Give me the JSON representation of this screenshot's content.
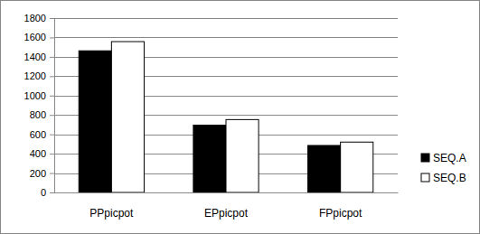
{
  "chart_data": {
    "type": "bar",
    "categories": [
      "PPpicpot",
      "EPpicpot",
      "FPpicpot"
    ],
    "series": [
      {
        "name": "SEQ.A",
        "color": "#000000",
        "values": [
          1462,
          695,
          485
        ]
      },
      {
        "name": "SEQ.B",
        "color": "#ffffff",
        "values": [
          1557,
          752,
          520
        ]
      }
    ],
    "ylim": [
      0,
      1800
    ],
    "yticks": [
      0,
      200,
      400,
      600,
      800,
      1000,
      1200,
      1400,
      1600,
      1800
    ],
    "grid": true,
    "legend": "right"
  }
}
